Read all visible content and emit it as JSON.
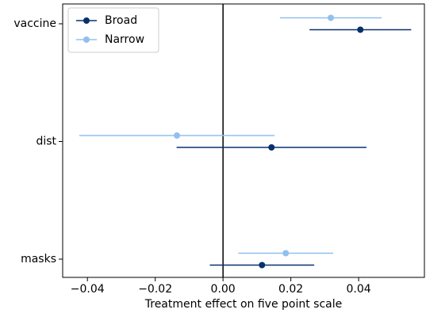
{
  "chart_data": {
    "type": "coefplot",
    "xlabel": "Treatment effect on five point scale",
    "categories": [
      "vaccine",
      "dist",
      "masks"
    ],
    "series": [
      {
        "name": "Broad",
        "color": "#08306b",
        "values": [
          0.0405,
          0.0143,
          0.0115
        ],
        "errors": [
          0.015,
          0.028,
          0.0154
        ]
      },
      {
        "name": "Narrow",
        "color": "#92c0ee",
        "values": [
          0.0318,
          -0.0136,
          0.0185
        ],
        "errors": [
          0.015,
          0.0288,
          0.014
        ]
      }
    ],
    "xlim": [
      -0.0473,
      0.0594
    ],
    "xticks": [
      {
        "value": -0.04,
        "label": "−0.04"
      },
      {
        "value": -0.02,
        "label": "−0.02"
      },
      {
        "value": 0,
        "label": "0.00"
      },
      0.02,
      0.04
    ],
    "vline": 0,
    "legend": "upper left"
  }
}
